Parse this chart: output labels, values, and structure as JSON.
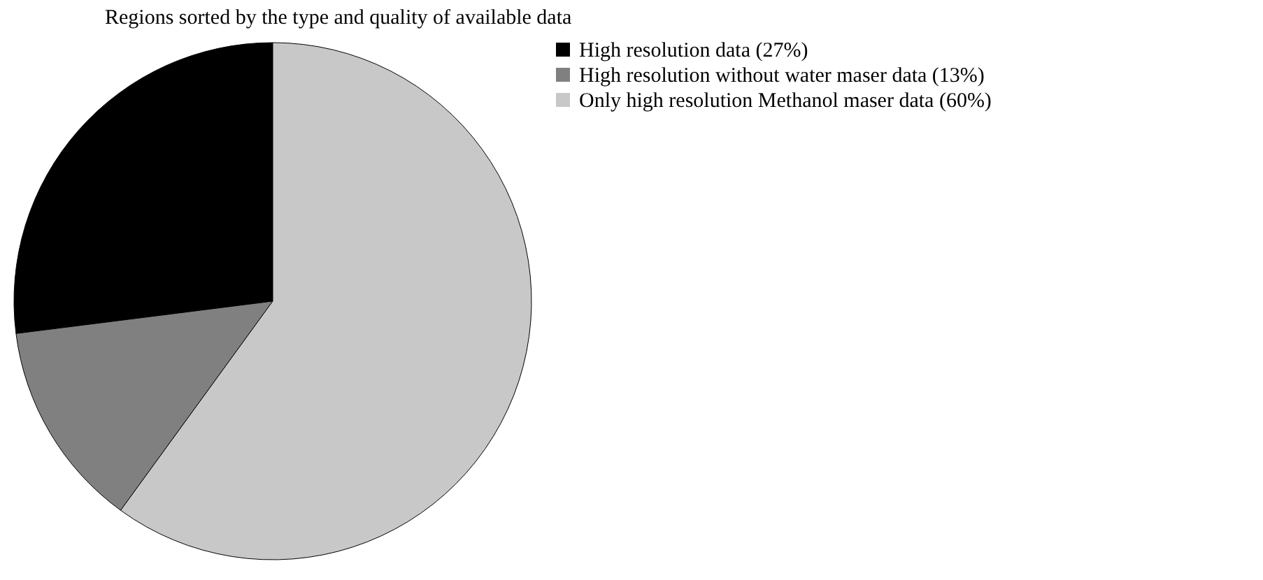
{
  "chart_data": {
    "type": "pie",
    "title": "Regions sorted by the type and quality of available data",
    "categories": [
      "High resolution data (27%)",
      "High resolution without water maser data (13%)",
      "Only high resolution Methanol maser data (60%)"
    ],
    "values": [
      27,
      13,
      60
    ],
    "colors": [
      "#000000",
      "#808080",
      "#c8c8c8"
    ],
    "legend": "right"
  }
}
